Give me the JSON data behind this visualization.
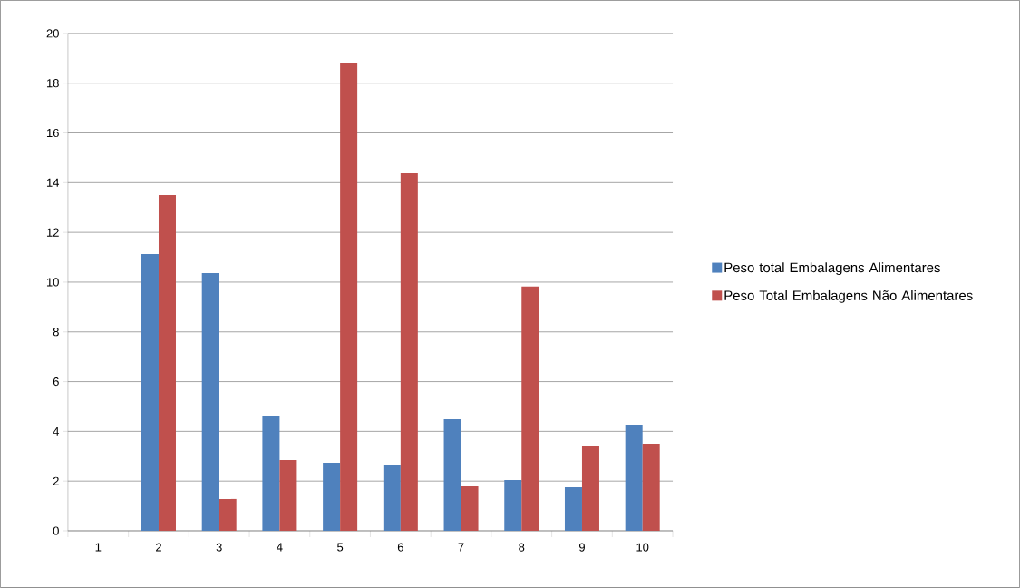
{
  "chart_data": {
    "type": "bar",
    "categories": [
      "1",
      "2",
      "3",
      "4",
      "5",
      "6",
      "7",
      "8",
      "9",
      "10"
    ],
    "series": [
      {
        "name": "Peso total Embalagens Alimentares",
        "color": "#4f81bd",
        "values": [
          null,
          11.13,
          10.36,
          4.63,
          2.74,
          2.66,
          4.49,
          2.04,
          1.75,
          4.27
        ]
      },
      {
        "name": "Peso Total Embalagens Não Alimentares",
        "color": "#c0504d",
        "values": [
          null,
          13.5,
          1.28,
          2.85,
          18.83,
          14.38,
          1.79,
          9.82,
          3.43,
          3.5
        ]
      }
    ],
    "ylim": [
      0,
      20
    ],
    "yticks": [
      0,
      2,
      4,
      6,
      8,
      10,
      12,
      14,
      16,
      18,
      20
    ],
    "grid": "y",
    "legend": "right"
  }
}
